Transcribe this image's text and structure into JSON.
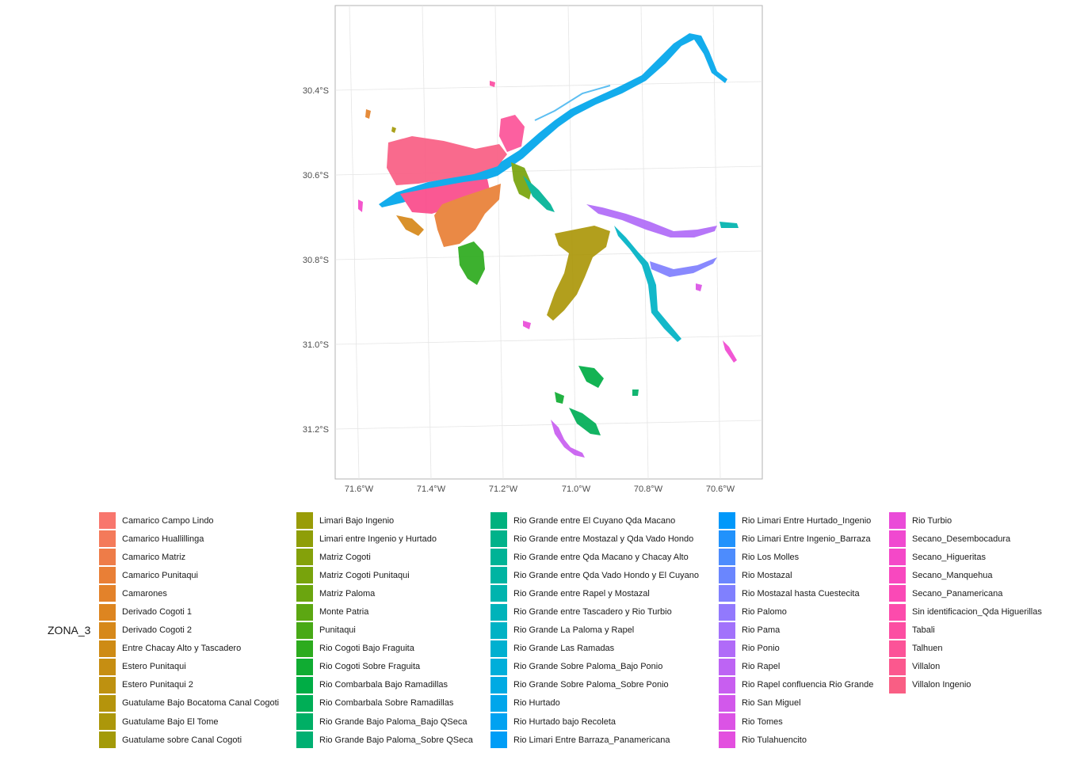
{
  "map": {
    "x_ticks": [
      "71.6°W",
      "71.4°W",
      "71.2°W",
      "71.0°W",
      "70.8°W",
      "70.6°W"
    ],
    "y_ticks": [
      "30.4°S",
      "30.6°S",
      "30.8°S",
      "31.0°S",
      "31.2°S"
    ],
    "grid": true,
    "panel_border": true
  },
  "legend": {
    "title": "ZONA_3",
    "columns": [
      [
        {
          "label": "Camarico Campo Lindo",
          "color": "#F8766D"
        },
        {
          "label": "Camarico Huallillinga",
          "color": "#F47A5A"
        },
        {
          "label": "Camarico Matriz",
          "color": "#EE7C48"
        },
        {
          "label": "Camarico Punitaqui",
          "color": "#E97F36"
        },
        {
          "label": "Camarones",
          "color": "#E3822A"
        },
        {
          "label": "Derivado Cogoti 1",
          "color": "#DD8520"
        },
        {
          "label": "Derivado Cogoti 2",
          "color": "#D6881A"
        },
        {
          "label": "Entre Chacay Alto y Tascadero",
          "color": "#CE8B14"
        },
        {
          "label": "Estero Punitaqui",
          "color": "#C68E12"
        },
        {
          "label": "Estero Punitaqui 2",
          "color": "#BE9110"
        },
        {
          "label": "Guatulame Bajo Bocatoma Canal Cogoti",
          "color": "#B5940C"
        },
        {
          "label": "Guatulame Bajo El Tome",
          "color": "#AC970A"
        },
        {
          "label": "Guatulame sobre Canal Cogoti",
          "color": "#A39A08"
        }
      ],
      [
        {
          "label": "Limari Bajo Ingenio",
          "color": "#999C07"
        },
        {
          "label": "Limari entre Ingenio y Hurtado",
          "color": "#8F9E08"
        },
        {
          "label": "Matriz Cogoti",
          "color": "#84A10A"
        },
        {
          "label": "Matriz Cogoti Punitaqui",
          "color": "#78A30C"
        },
        {
          "label": "Matriz Paloma",
          "color": "#6BA50F"
        },
        {
          "label": "Monte Patria",
          "color": "#5CA712"
        },
        {
          "label": "Punitaqui",
          "color": "#48A916"
        },
        {
          "label": "Rio Cogoti Bajo Fraguita",
          "color": "#2DAB1E"
        },
        {
          "label": "Rio Cogoti Sobre Fraguita",
          "color": "#10AC32"
        },
        {
          "label": "Rio Combarbala Bajo Ramadillas",
          "color": "#00AD45"
        },
        {
          "label": "Rio Combarbala Sobre Ramadillas",
          "color": "#00AE56"
        },
        {
          "label": "Rio Grande Bajo Paloma_Bajo QSeca",
          "color": "#00AF65"
        },
        {
          "label": "Rio Grande Bajo Paloma_Sobre QSeca",
          "color": "#00B072"
        }
      ],
      [
        {
          "label": "Rio Grande entre El Cuyano Qda Macano",
          "color": "#00B17E"
        },
        {
          "label": "Rio Grande entre Mostazal y Qda Vado Hondo",
          "color": "#00B28A"
        },
        {
          "label": "Rio Grande entre Qda Macano y Chacay Alto",
          "color": "#00B396"
        },
        {
          "label": "Rio Grande entre Qda Vado Hondo y El Cuyano",
          "color": "#00B4A2"
        },
        {
          "label": "Rio Grande entre Rapel y Mostazal",
          "color": "#00B4AE"
        },
        {
          "label": "Rio Grande entre Tascadero y Rio Turbio",
          "color": "#00B3BA"
        },
        {
          "label": "Rio Grande La Paloma y Rapel",
          "color": "#00B2C5"
        },
        {
          "label": "Rio Grande Las Ramadas",
          "color": "#00B0D0"
        },
        {
          "label": "Rio Grande Sobre Paloma_Bajo Ponio",
          "color": "#00AEDA"
        },
        {
          "label": "Rio Grande Sobre Paloma_Sobre Ponio",
          "color": "#00AAE3"
        },
        {
          "label": "Rio Hurtado",
          "color": "#00A6EB"
        },
        {
          "label": "Rio Hurtado bajo Recoleta",
          "color": "#00A2F1"
        },
        {
          "label": "Rio Limari Entre Barraza_Panamericana",
          "color": "#009DF6"
        }
      ],
      [
        {
          "label": "Rio Limari Entre Hurtado_Ingenio",
          "color": "#0098FA"
        },
        {
          "label": "Rio Limari Entre Ingenio_Barraza",
          "color": "#2192FC"
        },
        {
          "label": "Rio Los Molles",
          "color": "#4D8CFD"
        },
        {
          "label": "Rio Mostazal",
          "color": "#6A86FE"
        },
        {
          "label": "Rio Mostazal hasta Cuestecita",
          "color": "#8080FE"
        },
        {
          "label": "Rio Palomo",
          "color": "#9279FD"
        },
        {
          "label": "Rio Pama",
          "color": "#A272FB"
        },
        {
          "label": "Rio Ponio",
          "color": "#B06BF8"
        },
        {
          "label": "Rio Rapel",
          "color": "#BD64F4"
        },
        {
          "label": "Rio Rapel confluencia Rio Grande",
          "color": "#C85EF0"
        },
        {
          "label": "Rio San Miguel",
          "color": "#D258EB"
        },
        {
          "label": "Rio Tomes",
          "color": "#DB53E5"
        },
        {
          "label": "Rio Tulahuencito",
          "color": "#E34FDF"
        }
      ],
      [
        {
          "label": "Rio Turbio",
          "color": "#EA4BD8"
        },
        {
          "label": "Secano_Desembocadura",
          "color": "#F049D0"
        },
        {
          "label": "Secano_Higueritas",
          "color": "#F448C8"
        },
        {
          "label": "Secano_Manquehua",
          "color": "#F848BF"
        },
        {
          "label": "Secano_Panamericana",
          "color": "#FA49B6"
        },
        {
          "label": "Sin identificacion_Qda Higuerillas",
          "color": "#FC4BAC"
        },
        {
          "label": "Tabali",
          "color": "#FC4EA2"
        },
        {
          "label": "Talhuen",
          "color": "#FC5398"
        },
        {
          "label": "Villalon",
          "color": "#FB588E"
        },
        {
          "label": "Villalon Ingenio",
          "color": "#F95E84"
        }
      ]
    ]
  }
}
